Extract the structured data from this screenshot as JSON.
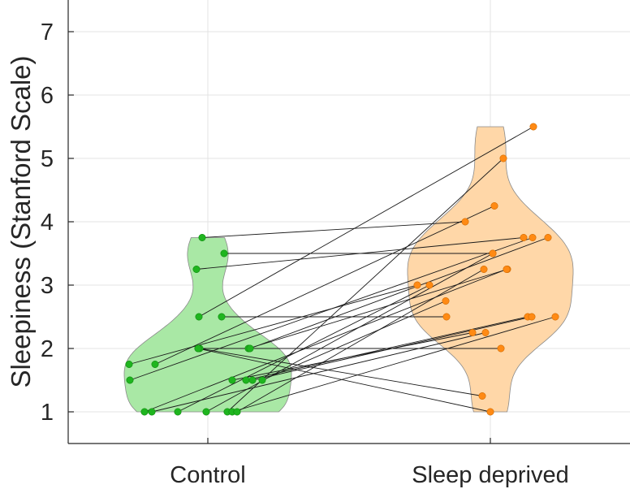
{
  "chart_data": {
    "type": "scatter",
    "ylabel": "Sleepiness (Stanford Scale)",
    "xlabel": "",
    "categories": [
      "Control",
      "Sleep deprived"
    ],
    "ylim": [
      0.5,
      7.5
    ],
    "yticks": [
      "1",
      "2",
      "3",
      "4",
      "5",
      "6",
      "7"
    ],
    "grid": true,
    "colors": {
      "control_point": "#1fb51f",
      "control_violin": "#a9e8a5",
      "deprived_point": "#ff8a14",
      "deprived_violin": "#ffd7a8",
      "pair_line": "#1a1a1a",
      "grid": "#e3e3e3",
      "axis": "#262626"
    },
    "pairs": [
      {
        "control": 3.75,
        "deprived": 4.0
      },
      {
        "control": 3.5,
        "deprived": 3.5
      },
      {
        "control": 3.25,
        "deprived": 3.75
      },
      {
        "control": 2.5,
        "deprived": 5.5
      },
      {
        "control": 2.5,
        "deprived": 2.5
      },
      {
        "control": 2.0,
        "deprived": 1.25
      },
      {
        "control": 2.0,
        "deprived": 1.0
      },
      {
        "control": 2.0,
        "deprived": 3.25
      },
      {
        "control": 2.0,
        "deprived": 3.75
      },
      {
        "control": 2.0,
        "deprived": 2.0
      },
      {
        "control": 1.75,
        "deprived": 4.25
      },
      {
        "control": 1.75,
        "deprived": 3.0
      },
      {
        "control": 1.5,
        "deprived": 3.75
      },
      {
        "control": 1.5,
        "deprived": 2.25
      },
      {
        "control": 1.5,
        "deprived": 2.75
      },
      {
        "control": 1.5,
        "deprived": 2.5
      },
      {
        "control": 1.5,
        "deprived": 2.5
      },
      {
        "control": 1.0,
        "deprived": 3.25
      },
      {
        "control": 1.0,
        "deprived": 2.25
      },
      {
        "control": 1.0,
        "deprived": 3.0
      },
      {
        "control": 1.0,
        "deprived": 3.5
      },
      {
        "control": 1.0,
        "deprived": 5.0
      },
      {
        "control": 1.0,
        "deprived": 2.5
      },
      {
        "control": 1.0,
        "deprived": 3.25
      }
    ]
  }
}
